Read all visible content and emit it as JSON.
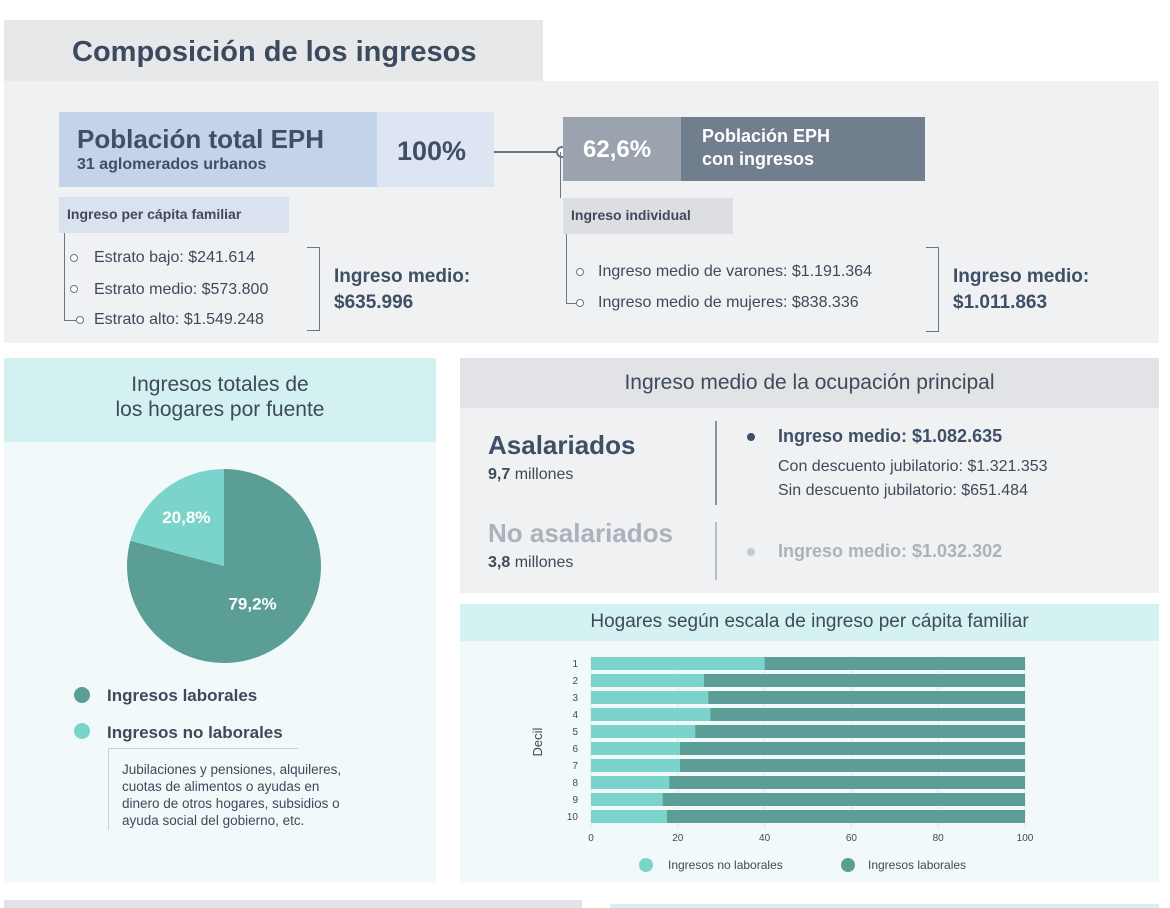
{
  "title": "Composición de los ingresos",
  "poblacion_total": {
    "title": "Población total EPH",
    "subtitle": "31 aglomerados urbanos",
    "pct": "100%"
  },
  "poblacion_ingresos": {
    "pct": "62,6%",
    "label_line1": "Población EPH",
    "label_line2": "con ingresos"
  },
  "per_capita": {
    "tag": "Ingreso per cápita familiar",
    "items": [
      "Estrato bajo: $241.614",
      "Estrato medio: $573.800",
      "Estrato alto: $1.549.248"
    ],
    "medio_label": "Ingreso medio:",
    "medio_value": "$635.996"
  },
  "individual": {
    "tag": "Ingreso individual",
    "items": [
      "Ingreso medio de varones: $1.191.364",
      "Ingreso medio de mujeres: $838.336"
    ],
    "medio_label": "Ingreso medio:",
    "medio_value": "$1.011.863"
  },
  "pie_panel": {
    "title_line1": "Ingresos totales de",
    "title_line2": "los hogares por fuente",
    "legend": [
      {
        "label": "Ingresos laborales",
        "color": "#5a9e96"
      },
      {
        "label": "Ingresos no laborales",
        "color": "#7ad4cb"
      }
    ],
    "note_lines": [
      "Jubilaciones y pensiones, alquileres,",
      "cuotas de alimentos o ayudas en",
      "dinero de otros hogares,  subsidios o",
      "ayuda social del gobierno, etc."
    ]
  },
  "ocupacion": {
    "title": "Ingreso medio de la ocupación principal",
    "asalariados": {
      "label": "Asalariados",
      "count_num": "9,7",
      "count_unit": "millones",
      "medio": "Ingreso medio: $1.082.635",
      "con": "Con descuento jubilatorio: $1.321.353",
      "sin": "Sin descuento jubilatorio: $651.484"
    },
    "no_asalariados": {
      "label": "No asalariados",
      "count_num": "3,8",
      "count_unit": "millones",
      "medio": "Ingreso medio: $1.032.302"
    }
  },
  "chart_data": [
    {
      "type": "pie",
      "title": "",
      "slices": [
        {
          "label": "Ingresos laborales",
          "value": 79.2,
          "text": "79,2%",
          "color": "#5a9e96"
        },
        {
          "label": "Ingresos no laborales",
          "value": 20.8,
          "text": "20,8%",
          "color": "#7ad4cb"
        }
      ]
    },
    {
      "type": "bar",
      "orientation": "horizontal",
      "stacked": true,
      "title": "Hogares según escala de ingreso per cápita familiar",
      "ylabel": "Decil",
      "xlabel": "",
      "categories": [
        "1",
        "2",
        "3",
        "4",
        "5",
        "6",
        "7",
        "8",
        "9",
        "10"
      ],
      "xlim": [
        0,
        100
      ],
      "xticks": [
        0,
        20,
        40,
        60,
        80,
        100
      ],
      "legend_position": "bottom",
      "series": [
        {
          "name": "Ingresos no laborales",
          "color": "#7ad4cb",
          "values": [
            40,
            26,
            27,
            27.5,
            24,
            20.5,
            20.5,
            18,
            16.5,
            17.5
          ]
        },
        {
          "name": "Ingresos laborales",
          "color": "#5a9e96",
          "values": [
            60,
            74,
            73,
            72.5,
            76,
            79.5,
            79.5,
            82,
            83.5,
            82.5
          ]
        }
      ]
    }
  ]
}
